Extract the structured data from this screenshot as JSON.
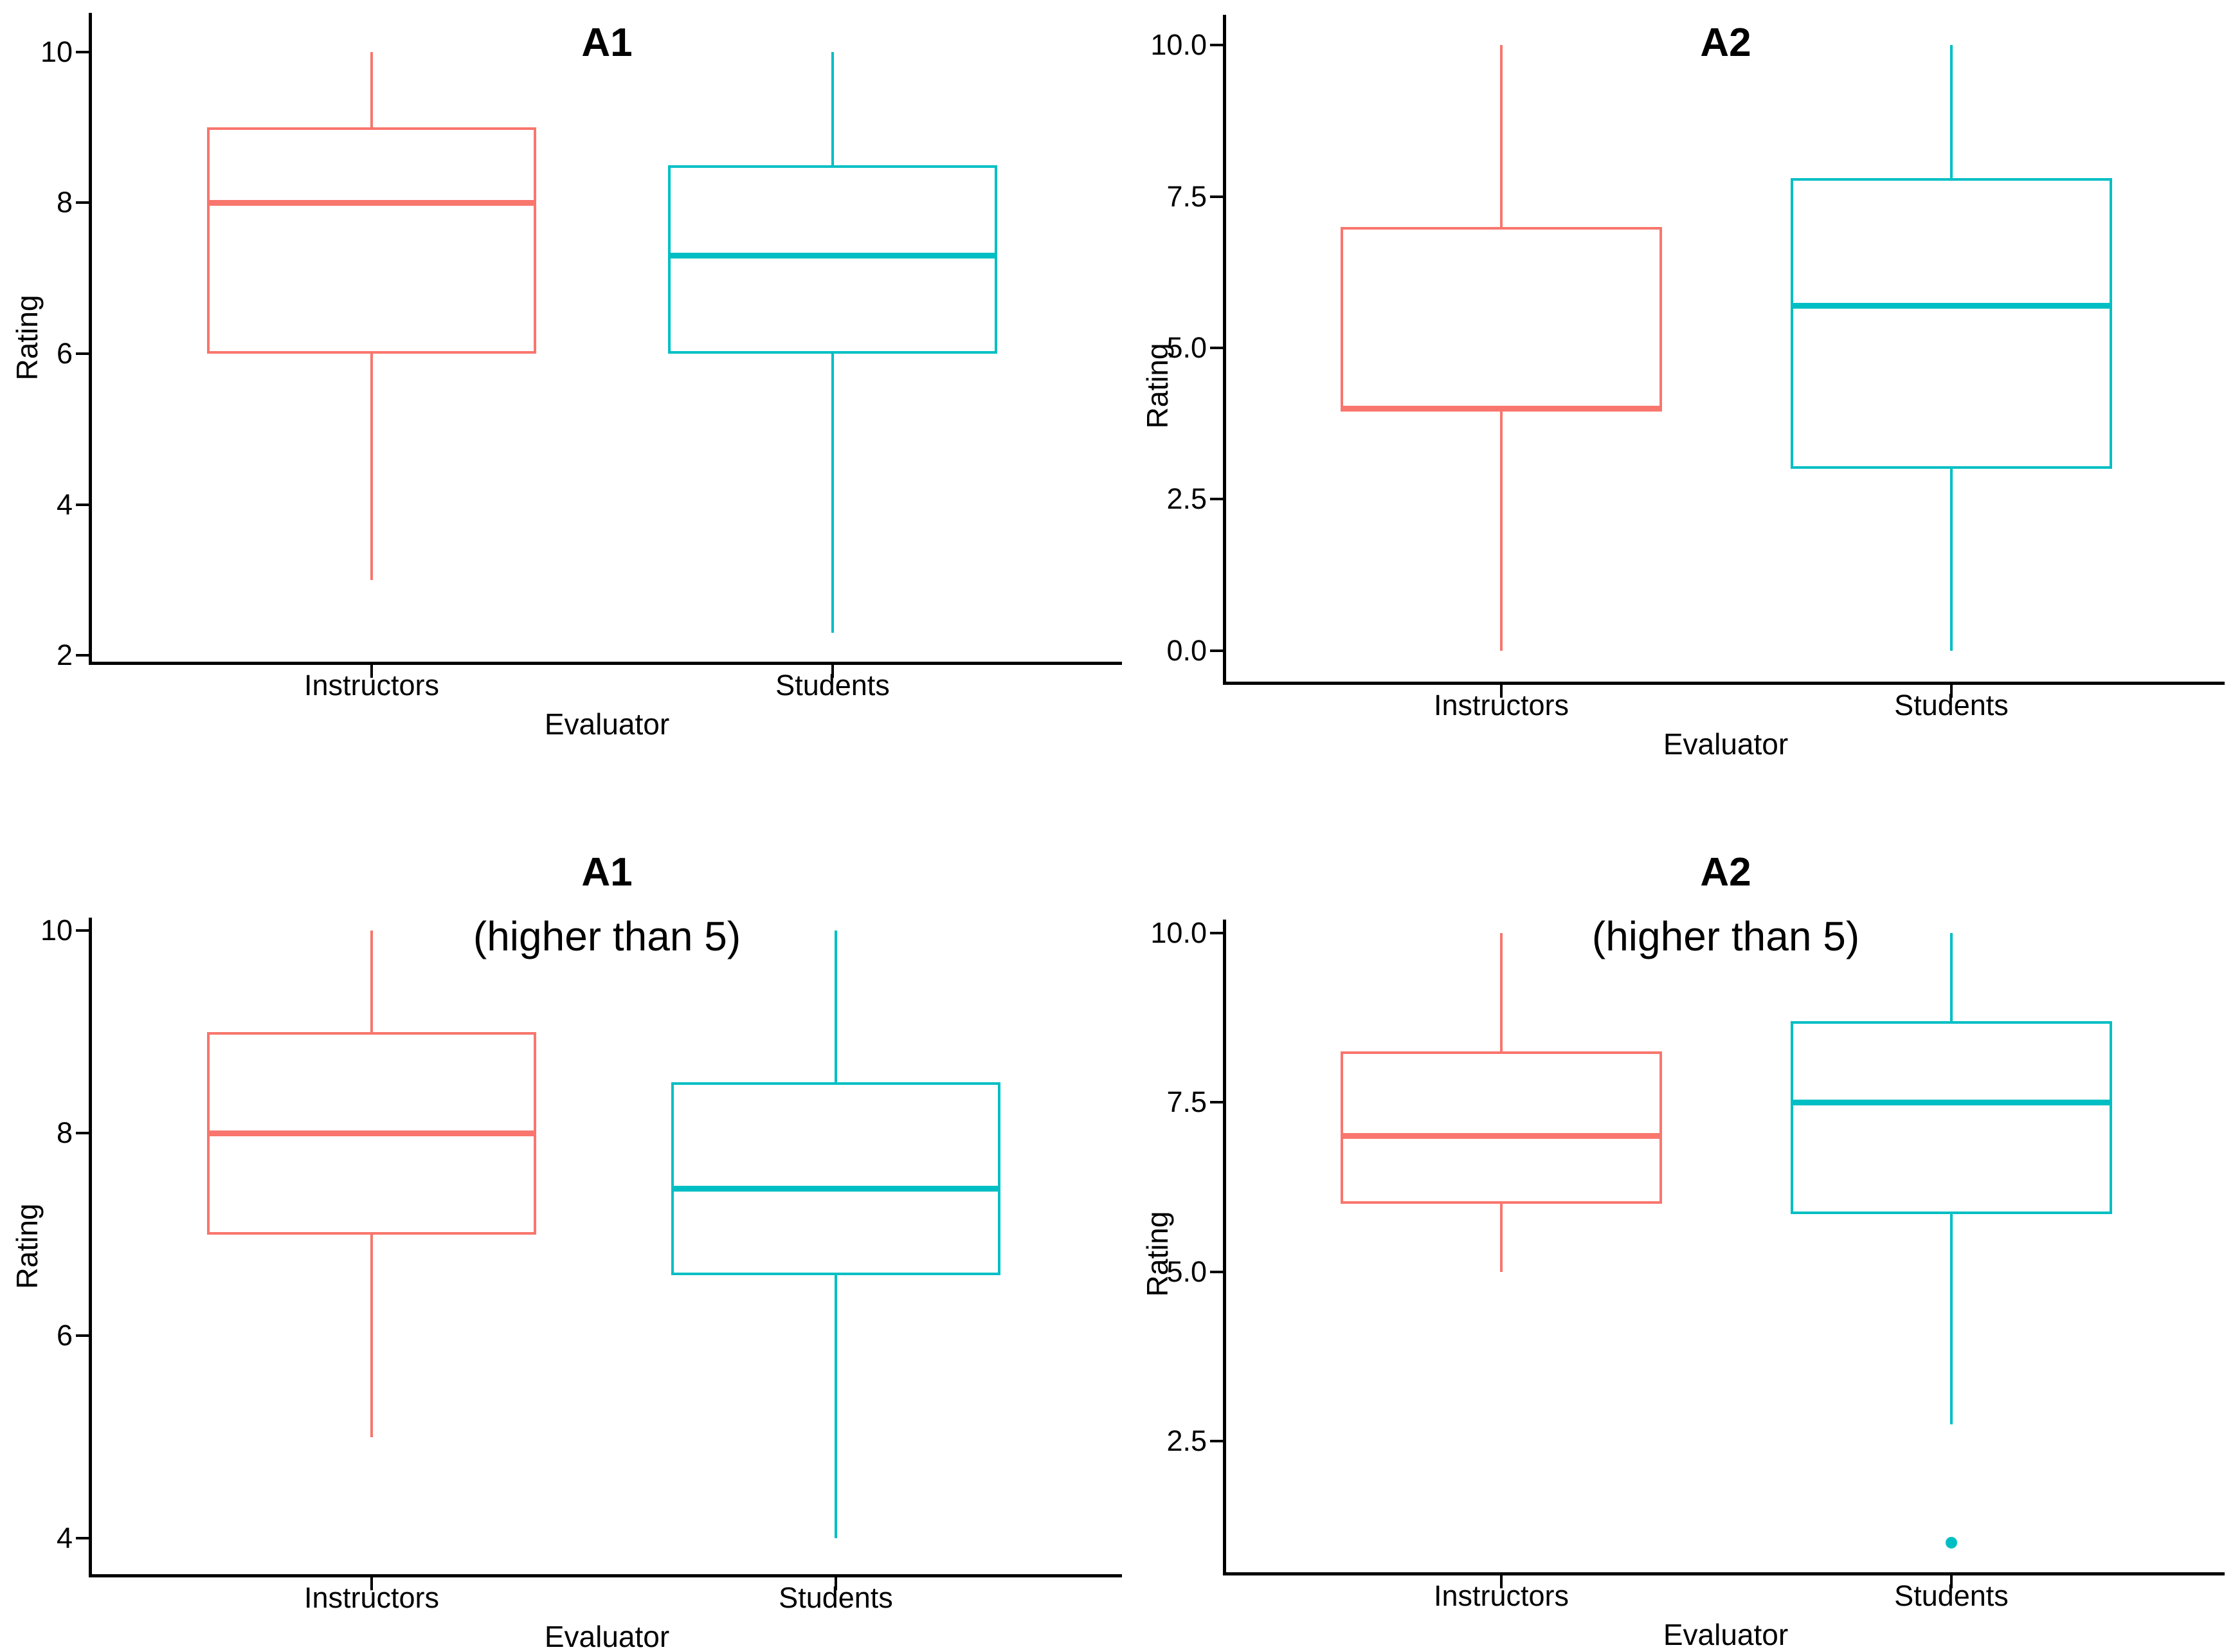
{
  "page": {
    "background": "#ffffff"
  },
  "colors": {
    "instructors": "#F8766D",
    "students": "#00BFC4",
    "axis": "#000000",
    "text": "#000000"
  },
  "chart_data": [
    {
      "type": "boxplot",
      "title": "A1",
      "subtitle": "",
      "xlabel": "Evaluator",
      "ylabel": "Rating",
      "grid": false,
      "legend_position": "none",
      "categories": [
        "Instructors",
        "Students"
      ],
      "ylim": [
        1.915,
        10.52
      ],
      "y_ticks": [
        {
          "value": 2,
          "label": "2"
        },
        {
          "value": 4,
          "label": "4"
        },
        {
          "value": 6,
          "label": "6"
        },
        {
          "value": 8,
          "label": "8"
        },
        {
          "value": 10,
          "label": "10"
        }
      ],
      "series": [
        {
          "name": "Instructors",
          "color_key": "instructors",
          "whisker_low": 3.0,
          "q1": 6.0,
          "median": 8.0,
          "q3": 9.0,
          "whisker_high": 10.0,
          "outliers": []
        },
        {
          "name": "Students",
          "color_key": "students",
          "whisker_low": 2.3,
          "q1": 6.0,
          "median": 7.3,
          "q3": 8.5,
          "whisker_high": 10.0,
          "outliers": []
        }
      ]
    },
    {
      "type": "boxplot",
      "title": "A2",
      "subtitle": "",
      "xlabel": "Evaluator",
      "ylabel": "Rating",
      "grid": false,
      "legend_position": "none",
      "categories": [
        "Instructors",
        "Students"
      ],
      "ylim": [
        -0.51,
        10.5
      ],
      "y_ticks": [
        {
          "value": 0,
          "label": "0.0"
        },
        {
          "value": 2.5,
          "label": "2.5"
        },
        {
          "value": 5,
          "label": "5.0"
        },
        {
          "value": 7.5,
          "label": "7.5"
        },
        {
          "value": 10,
          "label": "10.0"
        }
      ],
      "series": [
        {
          "name": "Instructors",
          "color_key": "instructors",
          "whisker_low": 0.0,
          "q1": 4.0,
          "median": 4.0,
          "q3": 7.0,
          "whisker_high": 10.0,
          "outliers": []
        },
        {
          "name": "Students",
          "color_key": "students",
          "whisker_low": 0.0,
          "q1": 3.0,
          "median": 5.7,
          "q3": 7.8,
          "whisker_high": 10.0,
          "outliers": []
        }
      ]
    },
    {
      "type": "boxplot",
      "title": "A1",
      "subtitle": "(higher than 5)",
      "xlabel": "Evaluator",
      "ylabel": "Rating",
      "grid": false,
      "legend_position": "none",
      "categories": [
        "Instructors",
        "Students"
      ],
      "ylim": [
        3.645,
        10.127
      ],
      "y_ticks": [
        {
          "value": 4,
          "label": "4"
        },
        {
          "value": 6,
          "label": "6"
        },
        {
          "value": 8,
          "label": "8"
        },
        {
          "value": 10,
          "label": "10"
        }
      ],
      "series": [
        {
          "name": "Instructors",
          "color_key": "instructors",
          "whisker_low": 5.0,
          "q1": 7.0,
          "median": 8.0,
          "q3": 9.0,
          "whisker_high": 10.0,
          "outliers": []
        },
        {
          "name": "Students",
          "color_key": "students",
          "whisker_low": 4.0,
          "q1": 6.6,
          "median": 7.45,
          "q3": 8.5,
          "whisker_high": 10.0,
          "outliers": []
        }
      ]
    },
    {
      "type": "boxplot",
      "title": "A2",
      "subtitle": "(higher than 5)",
      "xlabel": "Evaluator",
      "ylabel": "Rating",
      "grid": false,
      "legend_position": "none",
      "categories": [
        "Instructors",
        "Students"
      ],
      "ylim": [
        0.565,
        10.195
      ],
      "y_ticks": [
        {
          "value": 2.5,
          "label": "2.5"
        },
        {
          "value": 5,
          "label": "5.0"
        },
        {
          "value": 7.5,
          "label": "7.5"
        },
        {
          "value": 10,
          "label": "10.0"
        }
      ],
      "series": [
        {
          "name": "Instructors",
          "color_key": "instructors",
          "whisker_low": 5.0,
          "q1": 6.0,
          "median": 7.0,
          "q3": 8.25,
          "whisker_high": 10.0,
          "outliers": []
        },
        {
          "name": "Students",
          "color_key": "students",
          "whisker_low": 2.75,
          "q1": 5.85,
          "median": 7.5,
          "q3": 8.7,
          "whisker_high": 10.0,
          "outliers": [
            1.0
          ]
        }
      ]
    }
  ]
}
